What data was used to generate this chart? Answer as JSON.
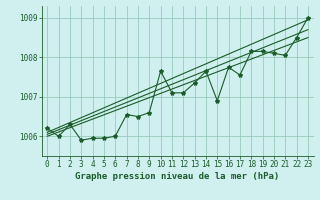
{
  "title": "Graphe pression niveau de la mer (hPa)",
  "bg_color": "#cff0ee",
  "grid_color": "#99ccbb",
  "line_color": "#1a5c2a",
  "xlim": [
    -0.5,
    23.5
  ],
  "ylim": [
    1005.5,
    1009.3
  ],
  "yticks": [
    1006,
    1007,
    1008,
    1009
  ],
  "xticks": [
    0,
    1,
    2,
    3,
    4,
    5,
    6,
    7,
    8,
    9,
    10,
    11,
    12,
    13,
    14,
    15,
    16,
    17,
    18,
    19,
    20,
    21,
    22,
    23
  ],
  "main_data": [
    1006.2,
    1006.0,
    1006.3,
    1005.9,
    1005.95,
    1005.95,
    1006.0,
    1006.55,
    1006.5,
    1006.6,
    1007.65,
    1007.1,
    1007.1,
    1007.35,
    1007.65,
    1006.9,
    1007.75,
    1007.55,
    1008.15,
    1008.15,
    1008.1,
    1008.05,
    1008.5,
    1009.0
  ],
  "trend_lines": [
    {
      "x0": 0,
      "y0": 1006.0,
      "x1": 23,
      "y1": 1008.5
    },
    {
      "x0": 0,
      "y0": 1006.05,
      "x1": 23,
      "y1": 1008.7
    },
    {
      "x0": 0,
      "y0": 1006.1,
      "x1": 23,
      "y1": 1008.95
    }
  ],
  "tick_fontsize": 5.5,
  "title_fontsize": 6.5,
  "figsize": [
    3.2,
    2.0
  ],
  "dpi": 100
}
